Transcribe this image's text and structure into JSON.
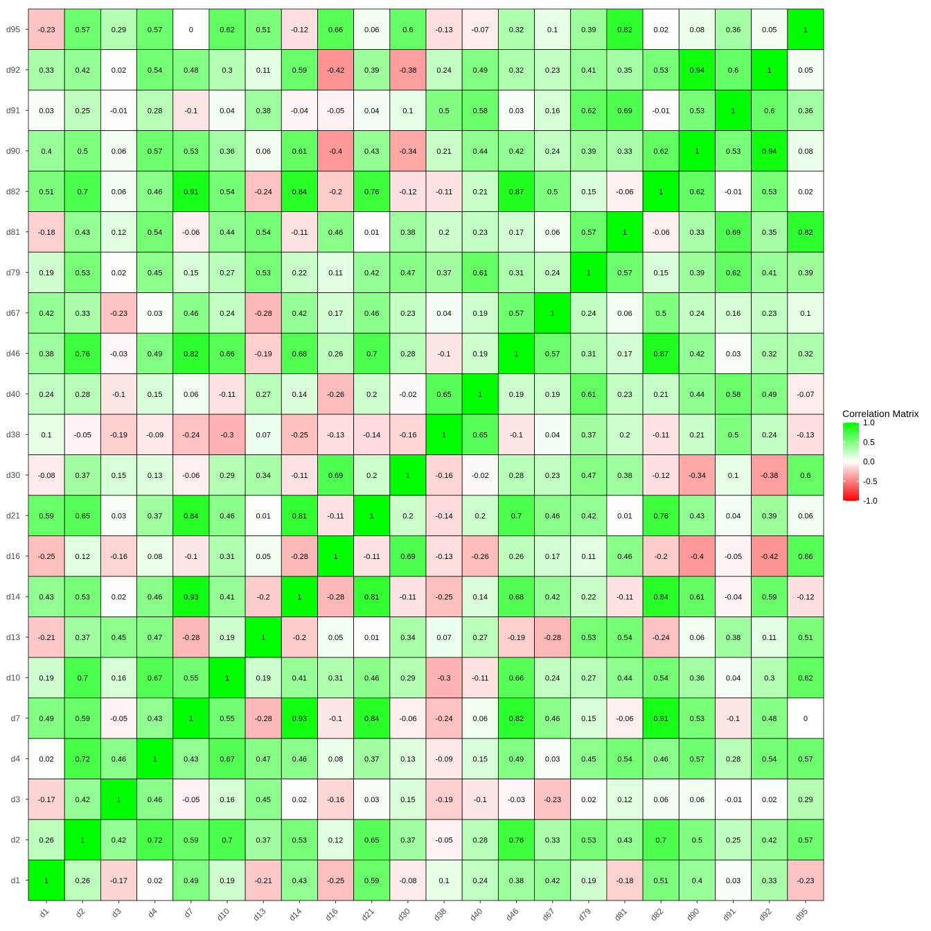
{
  "chart_data": {
    "type": "heatmap",
    "variables": [
      "d1",
      "d2",
      "d3",
      "d4",
      "d7",
      "d10",
      "d13",
      "d14",
      "d16",
      "d21",
      "d30",
      "d38",
      "d40",
      "d46",
      "d67",
      "d79",
      "d81",
      "d82",
      "d90",
      "d91",
      "d92",
      "d95"
    ],
    "matrix": [
      [
        1,
        0.26,
        -0.17,
        0.02,
        0.49,
        0.19,
        -0.21,
        0.43,
        -0.25,
        0.59,
        -0.08,
        0.1,
        0.24,
        0.38,
        0.42,
        0.19,
        -0.18,
        0.51,
        0.4,
        0.03,
        0.33,
        -0.23
      ],
      [
        0.26,
        1,
        0.42,
        0.72,
        0.59,
        0.7,
        0.37,
        0.53,
        0.12,
        0.65,
        0.37,
        -0.05,
        0.28,
        0.76,
        0.33,
        0.53,
        0.43,
        0.7,
        0.5,
        0.25,
        0.42,
        0.57
      ],
      [
        -0.17,
        0.42,
        1,
        0.46,
        -0.05,
        0.16,
        0.45,
        0.02,
        -0.16,
        0.03,
        0.15,
        -0.19,
        -0.1,
        -0.03,
        -0.23,
        0.02,
        0.12,
        0.06,
        0.06,
        -0.01,
        0.02,
        0.29
      ],
      [
        0.02,
        0.72,
        0.46,
        1,
        0.43,
        0.67,
        0.47,
        0.46,
        0.08,
        0.37,
        0.13,
        -0.09,
        0.15,
        0.49,
        0.03,
        0.45,
        0.54,
        0.46,
        0.57,
        0.28,
        0.54,
        0.57
      ],
      [
        0.49,
        0.59,
        -0.05,
        0.43,
        1,
        0.55,
        -0.28,
        0.93,
        -0.1,
        0.84,
        -0.06,
        -0.24,
        0.06,
        0.82,
        0.46,
        0.15,
        -0.06,
        0.91,
        0.53,
        -0.1,
        0.48,
        0
      ],
      [
        0.19,
        0.7,
        0.16,
        0.67,
        0.55,
        1,
        0.19,
        0.41,
        0.31,
        0.46,
        0.29,
        -0.3,
        -0.11,
        0.66,
        0.24,
        0.27,
        0.44,
        0.54,
        0.36,
        0.04,
        0.3,
        0.62
      ],
      [
        -0.21,
        0.37,
        0.45,
        0.47,
        -0.28,
        0.19,
        1,
        -0.2,
        0.05,
        0.01,
        0.34,
        0.07,
        0.27,
        -0.19,
        -0.28,
        0.53,
        0.54,
        -0.24,
        0.06,
        0.38,
        0.11,
        0.51
      ],
      [
        0.43,
        0.53,
        0.02,
        0.46,
        0.93,
        0.41,
        -0.2,
        1,
        -0.28,
        0.81,
        -0.11,
        -0.25,
        0.14,
        0.68,
        0.42,
        0.22,
        -0.11,
        0.84,
        0.61,
        -0.04,
        0.59,
        -0.12
      ],
      [
        -0.25,
        0.12,
        -0.16,
        0.08,
        -0.1,
        0.31,
        0.05,
        -0.28,
        1,
        -0.11,
        0.69,
        -0.13,
        -0.26,
        0.26,
        0.17,
        0.11,
        0.46,
        -0.2,
        -0.4,
        -0.05,
        -0.42,
        0.66
      ],
      [
        0.59,
        0.65,
        0.03,
        0.37,
        0.84,
        0.46,
        0.01,
        0.81,
        -0.11,
        1,
        0.2,
        -0.14,
        0.2,
        0.7,
        0.46,
        0.42,
        0.01,
        0.76,
        0.43,
        0.04,
        0.39,
        0.06
      ],
      [
        -0.08,
        0.37,
        0.15,
        0.13,
        -0.06,
        0.29,
        0.34,
        -0.11,
        0.69,
        0.2,
        1,
        -0.16,
        -0.02,
        0.28,
        0.23,
        0.47,
        0.38,
        -0.12,
        -0.34,
        0.1,
        -0.38,
        0.6
      ],
      [
        0.1,
        -0.05,
        -0.19,
        -0.09,
        -0.24,
        -0.3,
        0.07,
        -0.25,
        -0.13,
        -0.14,
        -0.16,
        1,
        0.65,
        -0.1,
        0.04,
        0.37,
        0.2,
        -0.11,
        0.21,
        0.5,
        0.24,
        -0.13
      ],
      [
        0.24,
        0.28,
        -0.1,
        0.15,
        0.06,
        -0.11,
        0.27,
        0.14,
        -0.26,
        0.2,
        -0.02,
        0.65,
        1,
        0.19,
        0.19,
        0.61,
        0.23,
        0.21,
        0.44,
        0.58,
        0.49,
        -0.07
      ],
      [
        0.38,
        0.76,
        -0.03,
        0.49,
        0.82,
        0.66,
        -0.19,
        0.68,
        0.26,
        0.7,
        0.28,
        -0.1,
        0.19,
        1,
        0.57,
        0.31,
        0.17,
        0.87,
        0.42,
        0.03,
        0.32,
        0.32
      ],
      [
        0.42,
        0.33,
        -0.23,
        0.03,
        0.46,
        0.24,
        -0.28,
        0.42,
        0.17,
        0.46,
        0.23,
        0.04,
        0.19,
        0.57,
        1,
        0.24,
        0.06,
        0.5,
        0.24,
        0.16,
        0.23,
        0.1
      ],
      [
        0.19,
        0.53,
        0.02,
        0.45,
        0.15,
        0.27,
        0.53,
        0.22,
        0.11,
        0.42,
        0.47,
        0.37,
        0.61,
        0.31,
        0.24,
        1,
        0.57,
        0.15,
        0.39,
        0.62,
        0.41,
        0.39
      ],
      [
        -0.18,
        0.43,
        0.12,
        0.54,
        -0.06,
        0.44,
        0.54,
        -0.11,
        0.46,
        0.01,
        0.38,
        0.2,
        0.23,
        0.17,
        0.06,
        0.57,
        1,
        -0.06,
        0.33,
        0.69,
        0.35,
        0.82
      ],
      [
        0.51,
        0.7,
        0.06,
        0.46,
        0.91,
        0.54,
        -0.24,
        0.84,
        -0.2,
        0.76,
        -0.12,
        -0.11,
        0.21,
        0.87,
        0.5,
        0.15,
        -0.06,
        1,
        0.62,
        -0.01,
        0.53,
        0.02
      ],
      [
        0.4,
        0.5,
        0.06,
        0.57,
        0.53,
        0.36,
        0.06,
        0.61,
        -0.4,
        0.43,
        -0.34,
        0.21,
        0.44,
        0.42,
        0.24,
        0.39,
        0.33,
        0.62,
        1,
        0.53,
        0.94,
        0.08
      ],
      [
        0.03,
        0.25,
        -0.01,
        0.28,
        -0.1,
        0.04,
        0.38,
        -0.04,
        -0.05,
        0.04,
        0.1,
        0.5,
        0.58,
        0.03,
        0.16,
        0.62,
        0.69,
        -0.01,
        0.53,
        1,
        0.6,
        0.36
      ],
      [
        0.33,
        0.42,
        0.02,
        0.54,
        0.48,
        0.3,
        0.11,
        0.59,
        -0.42,
        0.39,
        -0.38,
        0.24,
        0.49,
        0.32,
        0.23,
        0.41,
        0.35,
        0.53,
        0.94,
        0.6,
        1,
        0.05
      ],
      [
        -0.23,
        0.57,
        0.29,
        0.57,
        0,
        0.62,
        0.51,
        -0.12,
        0.66,
        0.06,
        0.6,
        -0.13,
        -0.07,
        0.32,
        0.1,
        0.39,
        0.82,
        0.02,
        0.08,
        0.36,
        0.05,
        1
      ]
    ],
    "value_range": [
      -1,
      1
    ],
    "x_tick_rotation_deg": 45,
    "legend": {
      "title": "Correlation Matrix",
      "placement": "right",
      "ticks": [
        "1.0",
        "0.5",
        "0.0",
        "-0.5",
        "-1.0"
      ],
      "tick_values": [
        1,
        0.5,
        0,
        -0.5,
        -1
      ]
    },
    "colors": {
      "low": "#ff0000",
      "mid": "#ffffff",
      "high": "#00ff00",
      "cell_border": "#000000"
    },
    "grid": false
  }
}
